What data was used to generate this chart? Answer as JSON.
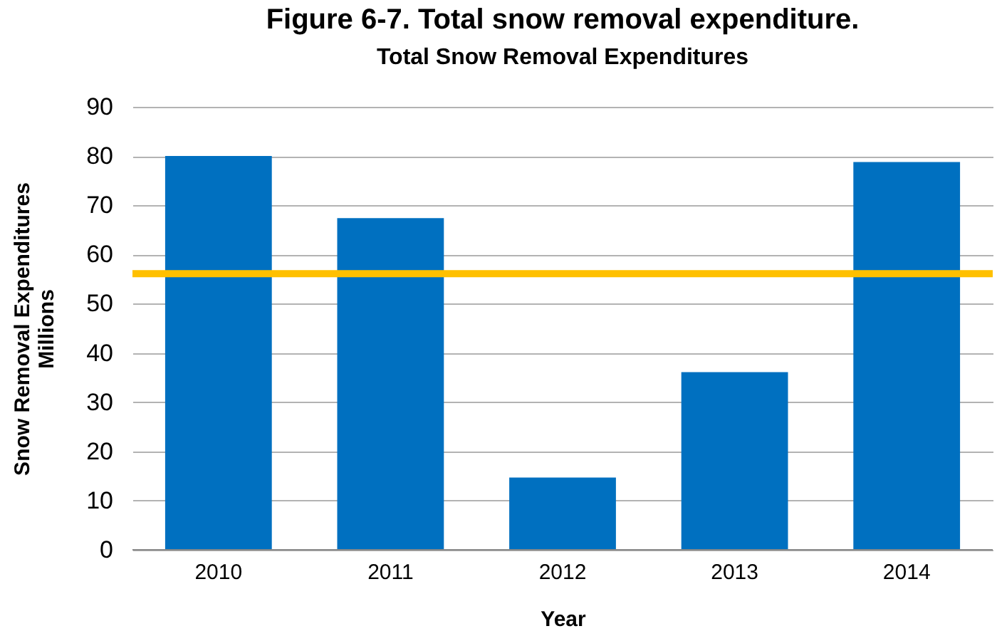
{
  "chart_data": {
    "type": "bar",
    "title": "Figure 6-7. Total snow removal expenditure.",
    "subtitle": "Total Snow Removal Expenditures",
    "xlabel": "Year",
    "ylabel": "Snow Removal Expenditures\nMillions",
    "categories": [
      "2010",
      "2011",
      "2012",
      "2013",
      "2014"
    ],
    "values": [
      80,
      67.4,
      14.7,
      36.1,
      78.8
    ],
    "color": "#0070c0",
    "ylim": [
      0,
      90
    ],
    "yticks": [
      0,
      10,
      20,
      30,
      40,
      50,
      60,
      70,
      80,
      90
    ],
    "grid": "y",
    "ref_lines": [
      {
        "axis": "y",
        "value": 56.1,
        "color": "#ffc000"
      }
    ]
  }
}
